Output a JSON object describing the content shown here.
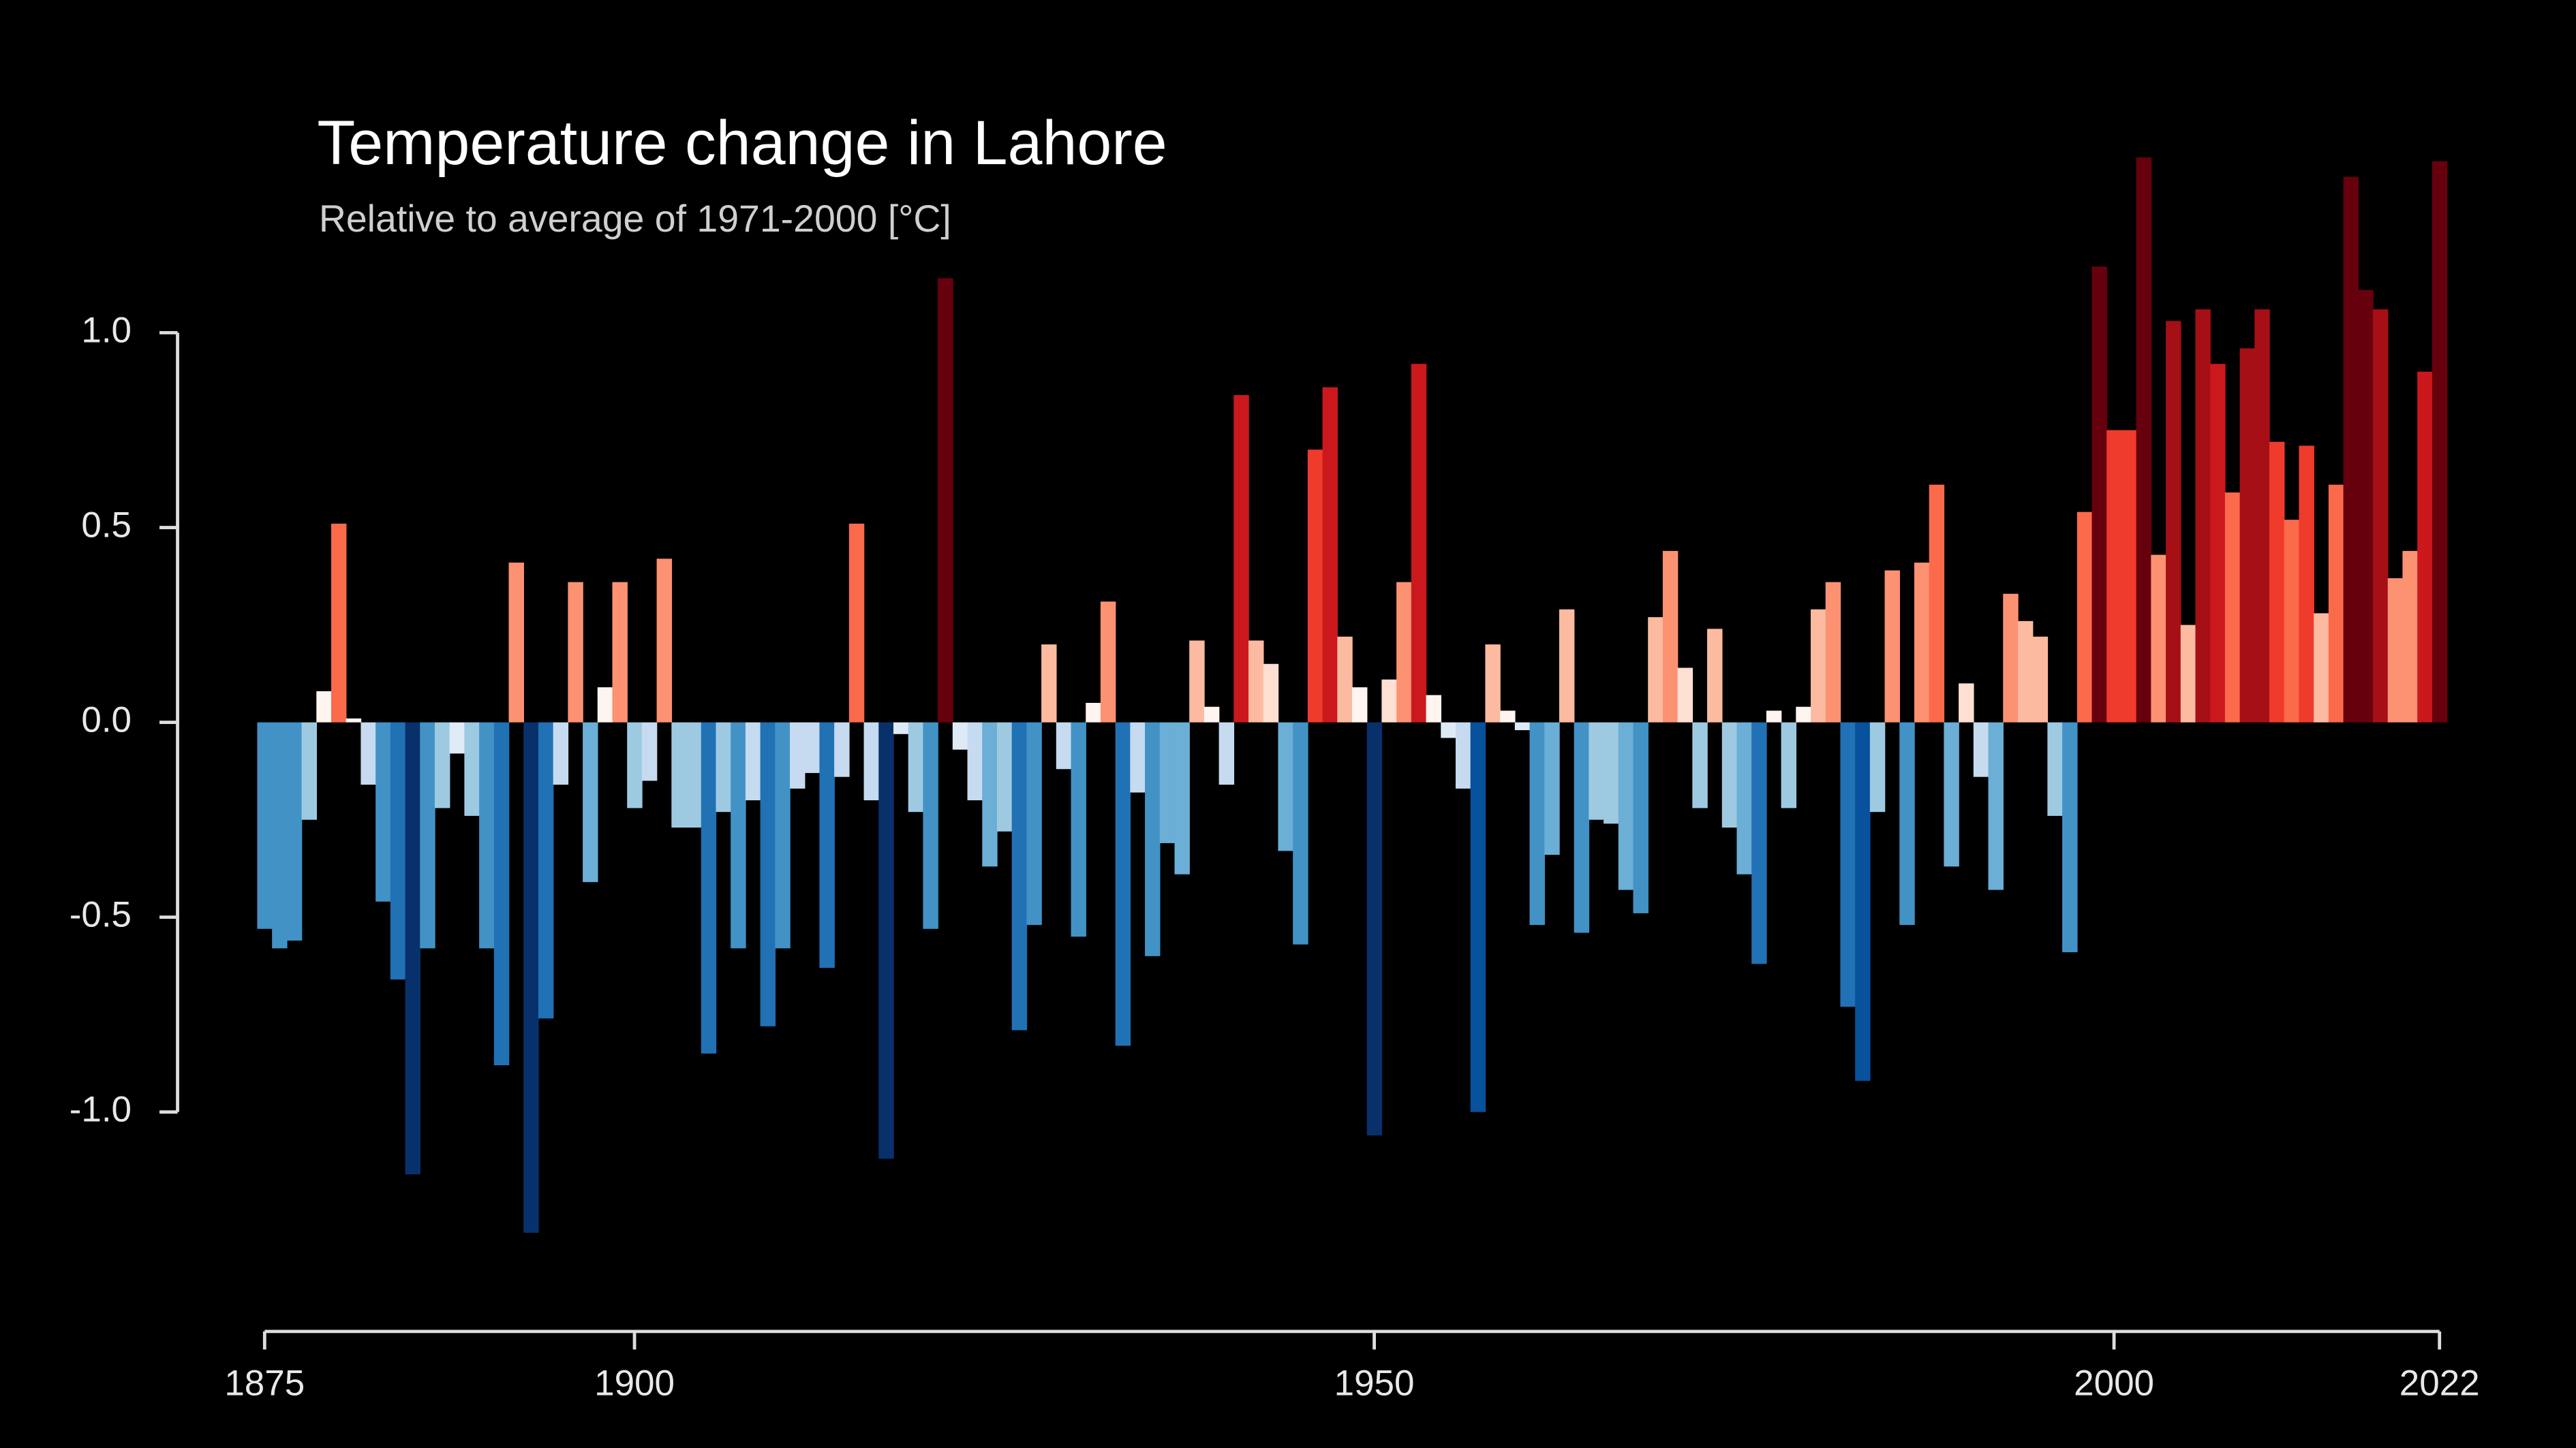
{
  "chart_data": {
    "type": "bar",
    "title": "Temperature change in Lahore",
    "subtitle": "Relative to average of 1971-2000  [°C]",
    "x": [
      1875,
      1876,
      1877,
      1878,
      1879,
      1880,
      1881,
      1882,
      1883,
      1884,
      1885,
      1886,
      1887,
      1888,
      1889,
      1890,
      1891,
      1892,
      1893,
      1894,
      1895,
      1896,
      1897,
      1898,
      1899,
      1900,
      1901,
      1902,
      1903,
      1904,
      1905,
      1906,
      1907,
      1908,
      1909,
      1910,
      1911,
      1912,
      1913,
      1914,
      1915,
      1916,
      1917,
      1918,
      1919,
      1920,
      1921,
      1922,
      1923,
      1924,
      1925,
      1926,
      1927,
      1928,
      1929,
      1930,
      1931,
      1932,
      1933,
      1934,
      1935,
      1936,
      1937,
      1938,
      1939,
      1940,
      1941,
      1942,
      1943,
      1944,
      1945,
      1946,
      1947,
      1948,
      1949,
      1950,
      1951,
      1952,
      1953,
      1954,
      1955,
      1956,
      1957,
      1958,
      1959,
      1960,
      1961,
      1962,
      1963,
      1964,
      1965,
      1966,
      1967,
      1968,
      1969,
      1970,
      1971,
      1972,
      1973,
      1974,
      1975,
      1976,
      1977,
      1978,
      1979,
      1980,
      1981,
      1982,
      1983,
      1984,
      1985,
      1986,
      1987,
      1988,
      1989,
      1990,
      1991,
      1992,
      1993,
      1994,
      1995,
      1996,
      1997,
      1998,
      1999,
      2000,
      2001,
      2002,
      2003,
      2004,
      2005,
      2006,
      2007,
      2008,
      2009,
      2010,
      2011,
      2012,
      2013,
      2014,
      2015,
      2016,
      2017,
      2018,
      2019,
      2020,
      2021,
      2022
    ],
    "values": [
      -0.53,
      -0.58,
      -0.56,
      -0.25,
      0.08,
      0.51,
      0.01,
      -0.16,
      -0.46,
      -0.66,
      -1.16,
      -0.58,
      -0.22,
      -0.08,
      -0.24,
      -0.58,
      -0.88,
      0.41,
      -1.31,
      -0.76,
      -0.16,
      0.36,
      -0.41,
      0.09,
      0.36,
      -0.22,
      -0.15,
      0.42,
      -0.27,
      -0.27,
      -0.85,
      -0.23,
      -0.58,
      -0.2,
      -0.78,
      -0.58,
      -0.17,
      -0.13,
      -0.63,
      -0.14,
      0.51,
      -0.2,
      -1.12,
      -0.03,
      -0.23,
      -0.53,
      1.14,
      -0.07,
      -0.2,
      -0.37,
      -0.28,
      -0.79,
      -0.52,
      0.2,
      -0.12,
      -0.55,
      0.05,
      0.31,
      -0.83,
      -0.18,
      -0.6,
      -0.31,
      -0.39,
      0.21,
      0.04,
      -0.16,
      0.84,
      0.21,
      0.15,
      -0.33,
      -0.57,
      0.7,
      0.86,
      0.22,
      0.09,
      -1.06,
      0.11,
      0.36,
      0.92,
      0.07,
      -0.04,
      -0.17,
      -1.0,
      0.2,
      0.03,
      -0.02,
      -0.52,
      -0.34,
      0.29,
      -0.54,
      -0.25,
      -0.26,
      -0.43,
      -0.49,
      0.27,
      0.44,
      0.14,
      -0.22,
      0.24,
      -0.27,
      -0.39,
      -0.62,
      0.03,
      -0.22,
      0.04,
      0.29,
      0.36,
      -0.73,
      -0.92,
      -0.23,
      0.39,
      -0.52,
      0.41,
      0.61,
      -0.37,
      0.1,
      -0.14,
      -0.43,
      0.33,
      0.26,
      0.22,
      -0.24,
      -0.59,
      0.54,
      1.17,
      0.75,
      0.75,
      1.45,
      0.43,
      1.03,
      0.25,
      1.06,
      0.92,
      0.59,
      0.96,
      1.06,
      0.72,
      0.52,
      0.71,
      0.28,
      0.61,
      1.4,
      1.11,
      1.06,
      0.37,
      0.44,
      0.9,
      1.44
    ],
    "colormap": [
      {
        "value": -2,
        "color": "#08306b"
      },
      {
        "value": -1.05,
        "color": "#08519c"
      },
      {
        "value": -0.9,
        "color": "#2171b5"
      },
      {
        "value": -0.6,
        "color": "#4292c6"
      },
      {
        "value": -0.45,
        "color": "#6baed6"
      },
      {
        "value": -0.3,
        "color": "#9ecae1"
      },
      {
        "value": -0.2,
        "color": "#c6dbef"
      },
      {
        "value": -0.1,
        "color": "#deebf7"
      },
      {
        "value": 0,
        "color": "#fff5f0"
      },
      {
        "value": 0.1,
        "color": "#fee0d2"
      },
      {
        "value": 0.2,
        "color": "#fcbba1"
      },
      {
        "value": 0.3,
        "color": "#fc9272"
      },
      {
        "value": 0.45,
        "color": "#fb6a4a"
      },
      {
        "value": 0.65,
        "color": "#ef3b2c"
      },
      {
        "value": 0.8,
        "color": "#cb181d"
      },
      {
        "value": 0.95,
        "color": "#a50f15"
      },
      {
        "value": 1.1,
        "color": "#67000d"
      }
    ],
    "xlim": [
      1875,
      2022
    ],
    "xticks": [
      1875,
      1900,
      1950,
      2000,
      2022
    ],
    "ylim": [
      -1.5,
      1.5
    ],
    "yticks": [
      {
        "value": -1,
        "label": "-1.0"
      },
      -0.5,
      {
        "value": 0,
        "label": "0.0"
      },
      0.5,
      {
        "value": 1,
        "label": "1.0"
      }
    ],
    "grid": false
  }
}
